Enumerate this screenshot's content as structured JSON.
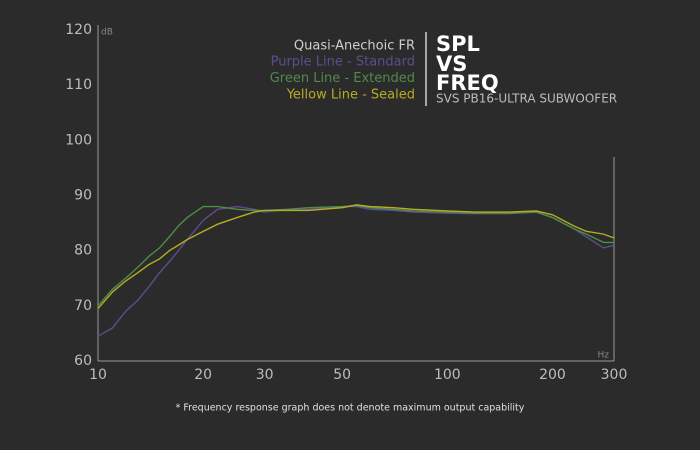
{
  "chart_data": {
    "type": "line",
    "title_lines": [
      "SPL",
      "VS",
      "FREQ"
    ],
    "subtitle": "SVS PB16-ULTRA SUBWOOFER",
    "legend_title": "Quasi-Anechoic FR",
    "y_unit": "dB",
    "x_unit": "Hz",
    "footnote": "* Frequency response graph does not denote maximum output capability",
    "xscale": "log",
    "x": [
      10,
      11,
      12,
      13,
      14,
      15,
      16,
      17,
      18,
      20,
      22,
      25,
      28,
      30,
      35,
      40,
      50,
      55,
      60,
      70,
      80,
      100,
      120,
      150,
      180,
      200,
      230,
      250,
      280,
      300
    ],
    "series": [
      {
        "name": "Purple Line - Standard",
        "color": "#5d4d8e",
        "values": [
          64.5,
          66,
          69,
          71,
          73.5,
          76,
          78,
          80,
          82,
          85.5,
          87.5,
          88,
          87.5,
          87,
          87.5,
          87.5,
          88,
          88,
          87.5,
          87.3,
          87,
          86.8,
          86.7,
          86.7,
          87,
          86,
          84,
          82.5,
          80.5,
          81
        ]
      },
      {
        "name": "Green Line - Extended",
        "color": "#4f8b4a",
        "values": [
          70,
          73,
          75,
          77,
          79,
          80.5,
          82.5,
          84.5,
          86,
          88,
          88,
          87.5,
          87.3,
          87.3,
          87.5,
          87.8,
          88,
          88.2,
          87.8,
          87.5,
          87.2,
          87,
          86.8,
          86.8,
          87,
          86,
          84,
          83,
          81.5,
          81.5
        ]
      },
      {
        "name": "Yellow Line - Sealed",
        "color": "#b5ad22",
        "values": [
          69.5,
          72.5,
          74.5,
          76,
          77.5,
          78.5,
          80,
          81,
          82,
          83.5,
          84.8,
          86,
          87,
          87.3,
          87.3,
          87.3,
          87.8,
          88.3,
          88,
          87.8,
          87.5,
          87.2,
          87,
          87,
          87.2,
          86.5,
          84.5,
          83.5,
          83,
          82.3
        ]
      }
    ],
    "xlim": [
      10,
      300
    ],
    "ylim": [
      60,
      120
    ],
    "xticks": [
      10,
      20,
      30,
      50,
      100,
      200,
      300
    ],
    "yticks": [
      60,
      70,
      80,
      90,
      100,
      110,
      120
    ]
  }
}
